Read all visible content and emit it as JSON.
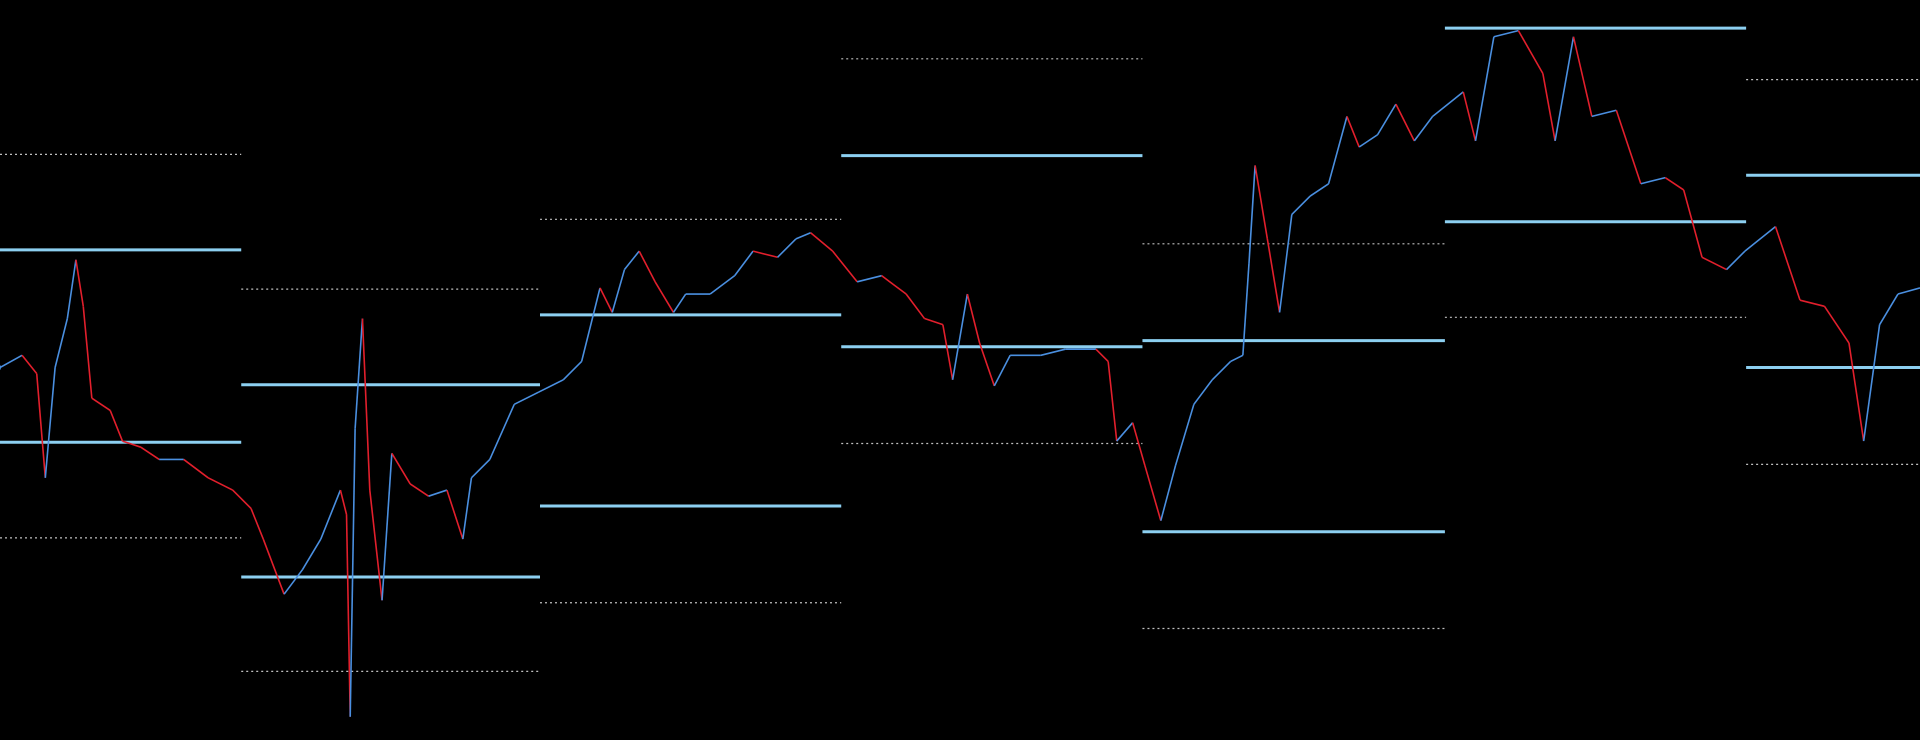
{
  "chart_data": {
    "type": "line",
    "background": "#000000",
    "up_color": "#4a8fe0",
    "down_color": "#e21f2c",
    "solid_color": "#8ccff0",
    "dotted_color": "#bfbfbf",
    "xlim": [
      0,
      1568
    ],
    "ylim": [
      0,
      604
    ],
    "x": [
      0,
      18,
      30,
      37,
      45,
      55,
      62,
      68,
      75,
      90,
      100,
      115,
      130,
      150,
      170,
      190,
      205,
      215,
      232,
      247,
      262,
      278,
      283,
      286,
      290,
      296,
      302,
      312,
      320,
      335,
      350,
      365,
      378,
      385,
      400,
      420,
      440,
      460,
      475,
      490,
      500,
      510,
      522,
      535,
      550,
      560,
      580,
      600,
      615,
      635,
      650,
      662,
      680,
      700,
      720,
      740,
      755,
      770,
      778,
      790,
      800,
      812,
      825,
      850,
      870,
      895,
      905,
      912,
      925,
      935,
      948,
      960,
      975,
      990,
      1005,
      1015,
      1020,
      1025,
      1035,
      1045,
      1055,
      1070,
      1085,
      1100,
      1110,
      1125,
      1140,
      1155,
      1170,
      1195,
      1205,
      1220,
      1240,
      1260,
      1270,
      1285,
      1300,
      1320,
      1340,
      1360,
      1375,
      1390,
      1410,
      1425,
      1450,
      1470,
      1490,
      1510,
      1522,
      1535,
      1550,
      1568
    ],
    "values": [
      304,
      314,
      299,
      214,
      304,
      344,
      392,
      354,
      279,
      269,
      244,
      239,
      229,
      229,
      214,
      204,
      189,
      164,
      119,
      139,
      164,
      204,
      184,
      19,
      254,
      344,
      204,
      114,
      234,
      209,
      199,
      204,
      164,
      214,
      229,
      274,
      284,
      294,
      309,
      369,
      349,
      384,
      399,
      374,
      349,
      364,
      364,
      379,
      399,
      394,
      409,
      414,
      399,
      374,
      379,
      364,
      344,
      339,
      294,
      364,
      324,
      289,
      314,
      314,
      319,
      319,
      309,
      244,
      259,
      224,
      179,
      224,
      274,
      294,
      309,
      314,
      389,
      469,
      409,
      349,
      429,
      444,
      454,
      509,
      484,
      494,
      519,
      489,
      509,
      529,
      489,
      574,
      579,
      544,
      489,
      574,
      509,
      514,
      454,
      459,
      449,
      394,
      384,
      399,
      419,
      359,
      354,
      324,
      244,
      339,
      364,
      369
    ],
    "bands": [
      {
        "x": [
          0,
          197
        ],
        "solid": [
          400,
          243
        ],
        "dotted": [
          478,
          165
        ]
      },
      {
        "x": [
          197,
          441
        ],
        "solid": [
          290,
          133
        ],
        "dotted": [
          368,
          56
        ]
      },
      {
        "x": [
          441,
          687
        ],
        "solid": [
          347,
          191
        ],
        "dotted": [
          425,
          112
        ]
      },
      {
        "x": [
          687,
          933
        ],
        "solid": [
          477,
          321
        ],
        "dotted": [
          556,
          242
        ]
      },
      {
        "x": [
          933,
          1180
        ],
        "solid": [
          326,
          170
        ],
        "dotted": [
          405,
          91
        ]
      },
      {
        "x": [
          1180,
          1426
        ],
        "solid": [
          581,
          423
        ],
        "dotted": [
          345
        ]
      },
      {
        "x": [
          1426,
          1568
        ],
        "solid": [
          461,
          304
        ],
        "dotted": [
          539,
          225
        ]
      }
    ]
  }
}
